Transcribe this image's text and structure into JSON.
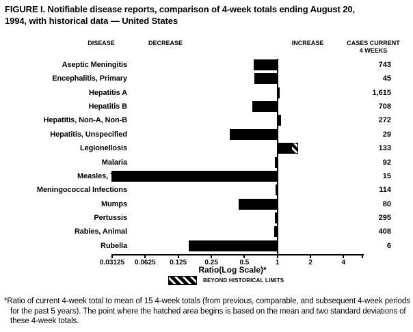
{
  "title": "FIGURE I. Notifiable disease reports, comparison of 4-week totals ending August 20,\n1994, with historical data — United States",
  "footnote": "*Ratio of current 4-week total to mean of 15 4-week totals (from previous, comparable, and subsequent 4-week periods for the past 5 years). The point where the hatched area begins is based on the mean and two standard deviations of these 4-week totals.",
  "colors": {
    "bar": "#000000",
    "background": "#ffffff",
    "text": "#000000"
  },
  "chart_data": {
    "type": "bar",
    "orientation": "horizontal",
    "scale": "log",
    "baseline_value": 1,
    "xlabel": "Ratio(Log Scale)*",
    "xlim": [
      0.03125,
      4
    ],
    "ticks": [
      "0.03125",
      "0.0625",
      "0.125",
      "0.25",
      "0.5",
      "1",
      "2",
      "4"
    ],
    "columns": {
      "disease": "DISEASE",
      "decrease": "DECREASE",
      "increase": "INCREASE",
      "cases": "CASES CURRENT\n4 WEEKS"
    },
    "legend": {
      "swatch": "hatched-box",
      "label": "BEYOND HISTORICAL LIMITS"
    },
    "rows": [
      {
        "disease": "Aseptic Meningitis",
        "cases": "743",
        "ratio": 0.61
      },
      {
        "disease": "Encephalitis, Primary",
        "cases": "45",
        "ratio": 0.62
      },
      {
        "disease": "Hepatitis A",
        "cases": "1,615",
        "ratio": 1.05
      },
      {
        "disease": "Hepatitis B",
        "cases": "708",
        "ratio": 0.59
      },
      {
        "disease": "Hepatitis, Non-A, Non-B",
        "cases": "272",
        "ratio": 1.08
      },
      {
        "disease": "Hepatitis, Unspecified",
        "cases": "29",
        "ratio": 0.37
      },
      {
        "disease": "Legionellosis",
        "cases": "133",
        "ratio": 1.54,
        "beyond_limit": true,
        "hatch_from": 1.33
      },
      {
        "disease": "Malaria",
        "cases": "92",
        "ratio": 0.95
      },
      {
        "disease": "Measles, Total",
        "cases": "15",
        "ratio": 0.031
      },
      {
        "disease": "Meningococcal Infections",
        "cases": "114",
        "ratio": 0.96
      },
      {
        "disease": "Mumps",
        "cases": "80",
        "ratio": 0.44
      },
      {
        "disease": "Pertussis",
        "cases": "295",
        "ratio": 0.95
      },
      {
        "disease": "Rabies, Animal",
        "cases": "408",
        "ratio": 0.93
      },
      {
        "disease": "Rubella",
        "cases": "6",
        "ratio": 0.155
      }
    ]
  }
}
